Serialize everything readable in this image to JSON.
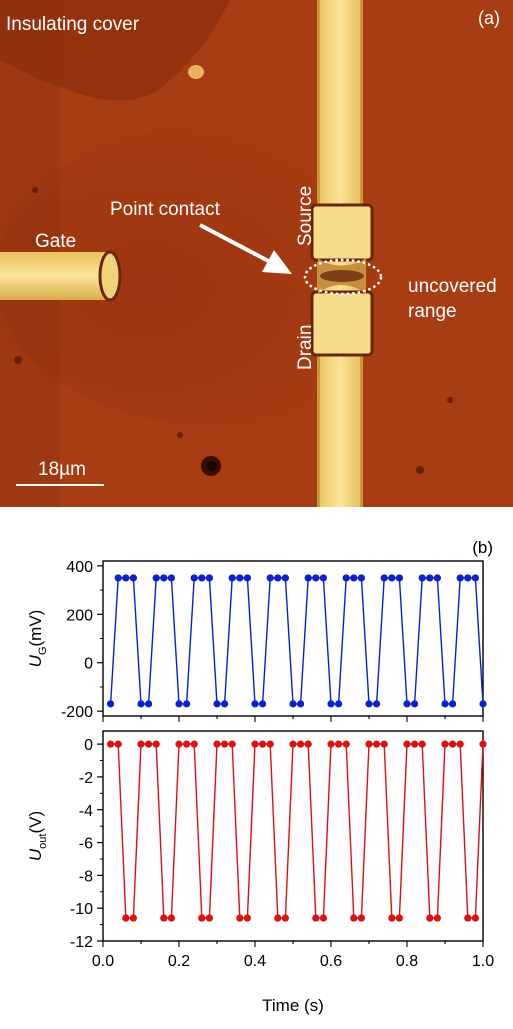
{
  "micrograph": {
    "panel_label": "(a)",
    "labels": {
      "insulating_cover": "Insulating cover",
      "point_contact": "Point contact",
      "gate": "Gate",
      "source": "Source",
      "drain": "Drain",
      "uncovered_line1": "uncovered",
      "uncovered_line2": "range"
    },
    "scale_bar": "18µm",
    "colors": {
      "substrate": "#a83c12",
      "electrode": "#f2d97a",
      "annotation": "#ffffff"
    }
  },
  "chart_data": [
    {
      "type": "line",
      "panel_label": "(b)",
      "xlabel": "",
      "ylabel": "U_G(mV)",
      "ylabel_main": "U",
      "ylabel_sub": "G",
      "ylabel_unit": "(mV)",
      "ylim": [
        -220,
        420
      ],
      "yticks": [
        -200,
        0,
        200,
        400
      ],
      "xlim": [
        0,
        1.0
      ],
      "color": "#0a1fd6",
      "series": [
        {
          "x": [
            0.02,
            0.04,
            0.06,
            0.08,
            0.1,
            0.12,
            0.14,
            0.16,
            0.18,
            0.2,
            0.22,
            0.24,
            0.26,
            0.28,
            0.3,
            0.32,
            0.34,
            0.36,
            0.38,
            0.4,
            0.42,
            0.44,
            0.46,
            0.48,
            0.5,
            0.52,
            0.54,
            0.56,
            0.58,
            0.6,
            0.62,
            0.64,
            0.66,
            0.68,
            0.7,
            0.72,
            0.74,
            0.76,
            0.78,
            0.8,
            0.82,
            0.84,
            0.86,
            0.88,
            0.9,
            0.92,
            0.94,
            0.96,
            0.98,
            1.0
          ],
          "y": [
            -170,
            350,
            350,
            350,
            -170,
            -170,
            350,
            350,
            350,
            -170,
            -170,
            350,
            350,
            350,
            -170,
            -170,
            350,
            350,
            350,
            -170,
            -170,
            350,
            350,
            350,
            -170,
            -170,
            350,
            350,
            350,
            -170,
            -170,
            350,
            350,
            350,
            -170,
            -170,
            350,
            350,
            350,
            -170,
            -170,
            350,
            350,
            350,
            -170,
            -170,
            350,
            350,
            350,
            -170
          ]
        }
      ]
    },
    {
      "type": "line",
      "xlabel": "Time (s)",
      "ylabel": "U_out(V)",
      "ylabel_main": "U",
      "ylabel_sub": "out",
      "ylabel_unit": "(V)",
      "ylim": [
        -12,
        0.8
      ],
      "yticks": [
        -12,
        -10,
        -8,
        -6,
        -4,
        -2,
        0
      ],
      "xlim": [
        0,
        1.0
      ],
      "xticks": [
        0.0,
        0.2,
        0.4,
        0.6,
        0.8,
        1.0
      ],
      "xtick_labels": [
        "0.0",
        "0.2",
        "0.4",
        "0.6",
        "0.8",
        "1.0"
      ],
      "color": "#e01010",
      "series": [
        {
          "x": [
            0.02,
            0.04,
            0.06,
            0.08,
            0.1,
            0.12,
            0.14,
            0.16,
            0.18,
            0.2,
            0.22,
            0.24,
            0.26,
            0.28,
            0.3,
            0.32,
            0.34,
            0.36,
            0.38,
            0.4,
            0.42,
            0.44,
            0.46,
            0.48,
            0.5,
            0.52,
            0.54,
            0.56,
            0.58,
            0.6,
            0.62,
            0.64,
            0.66,
            0.68,
            0.7,
            0.72,
            0.74,
            0.76,
            0.78,
            0.8,
            0.82,
            0.84,
            0.86,
            0.88,
            0.9,
            0.92,
            0.94,
            0.96,
            0.98,
            1.0
          ],
          "y": [
            0,
            0,
            -10.6,
            -10.6,
            0,
            0,
            0,
            -10.6,
            -10.6,
            0,
            0,
            0,
            -10.6,
            -10.6,
            0,
            0,
            0,
            -10.6,
            -10.6,
            0,
            0,
            0,
            -10.6,
            -10.6,
            0,
            0,
            0,
            -10.6,
            -10.6,
            0,
            0,
            0,
            -10.6,
            -10.6,
            0,
            0,
            0,
            -10.6,
            -10.6,
            0,
            0,
            0,
            -10.6,
            -10.6,
            0,
            0,
            0,
            -10.6,
            -10.6,
            0
          ]
        }
      ]
    }
  ]
}
